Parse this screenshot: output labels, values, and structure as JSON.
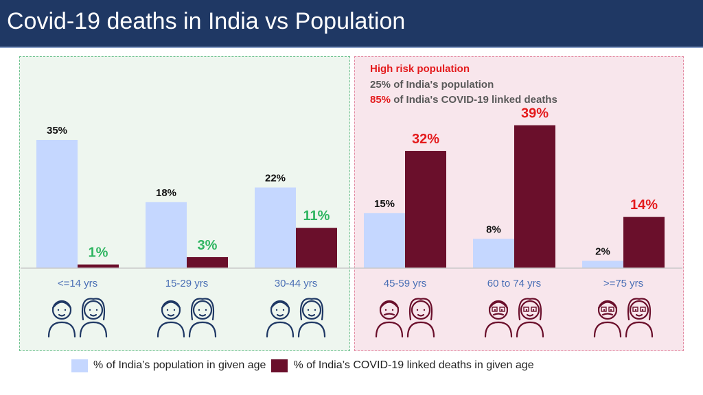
{
  "header": {
    "title": "Covid-19 deaths in India vs Population"
  },
  "risk_note": {
    "heading": "High risk population",
    "line2": "25% of India's population",
    "line3_value": "85%",
    "line3_text": " of India's COVID-19 linked deaths"
  },
  "legend": {
    "population_label": "% of India’s population in given age",
    "deaths_label": "% of India’s COVID-19 linked deaths in given age"
  },
  "colors": {
    "population": "#c5d7ff",
    "deaths": "#6a0f2b",
    "header_bg": "#1f3864",
    "low_risk_label": "#2fb561",
    "high_risk_label": "#e41a1c"
  },
  "chart_data": {
    "type": "bar",
    "categories": [
      "<=14 yrs",
      "15-29 yrs",
      "30-44 yrs",
      "45-59 yrs",
      "60 to 74 yrs",
      ">=75 yrs"
    ],
    "series": [
      {
        "name": "% of India’s population in given age",
        "values": [
          35,
          18,
          22,
          15,
          8,
          2
        ],
        "labels": [
          "35%",
          "18%",
          "22%",
          "15%",
          "8%",
          "2%"
        ]
      },
      {
        "name": "% of India’s COVID-19 linked deaths in given age",
        "values": [
          1,
          3,
          11,
          32,
          39,
          14
        ],
        "labels": [
          "1%",
          "3%",
          "11%",
          "32%",
          "39%",
          "14%"
        ]
      }
    ],
    "groups": [
      "low-risk",
      "low-risk",
      "low-risk",
      "high-risk",
      "high-risk",
      "high-risk"
    ],
    "ylim": [
      0,
      40
    ],
    "grid": false,
    "legend_position": "bottom"
  },
  "icons": [
    "kids-icon",
    "young-adults-icon",
    "adults-icon",
    "middle-aged-couple-icon",
    "senior-couple-icon",
    "elderly-couple-icon"
  ]
}
